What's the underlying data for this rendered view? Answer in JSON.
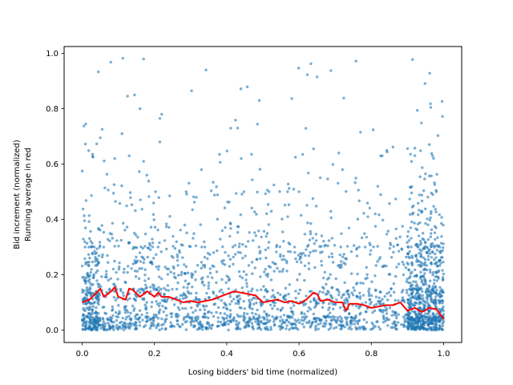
{
  "chart_data": {
    "type": "scatter",
    "title": "",
    "xlabel": "Losing bidders' bid time (normalized)",
    "ylabel_lines": [
      "Bid increment (normalized)",
      "Running average in red"
    ],
    "xlim": [
      -0.05,
      1.05
    ],
    "ylim": [
      -0.045,
      1.025
    ],
    "xticks": [
      0.0,
      0.2,
      0.4,
      0.6,
      0.8,
      1.0
    ],
    "xtick_labels": [
      "0.0",
      "0.2",
      "0.4",
      "0.6",
      "0.8",
      "1.0"
    ],
    "yticks": [
      0.0,
      0.2,
      0.4,
      0.6,
      0.8,
      1.0
    ],
    "ytick_labels": [
      "0.0",
      "0.2",
      "0.4",
      "0.6",
      "0.8",
      "1.0"
    ],
    "grid": false,
    "legend": null,
    "colors": {
      "points": "#1f77b4",
      "running_average": "#ff0000"
    },
    "notable_points": [
      {
        "x": 0.01,
        "y": 0.745
      },
      {
        "x": 0.05,
        "y": 0.695
      },
      {
        "x": 0.11,
        "y": 0.71
      },
      {
        "x": 0.145,
        "y": 0.85
      },
      {
        "x": 0.17,
        "y": 0.98
      },
      {
        "x": 0.22,
        "y": 0.78
      },
      {
        "x": 0.215,
        "y": 0.765
      },
      {
        "x": 0.43,
        "y": 0.73
      },
      {
        "x": 0.49,
        "y": 0.83
      },
      {
        "x": 0.65,
        "y": 0.915
      },
      {
        "x": 0.77,
        "y": 0.715
      },
      {
        "x": 0.16,
        "y": 0.8
      },
      {
        "x": 0.215,
        "y": 0.68
      },
      {
        "x": 0.38,
        "y": 0.635
      },
      {
        "x": 0.44,
        "y": 0.62
      },
      {
        "x": 0.61,
        "y": 0.635
      },
      {
        "x": 0.64,
        "y": 0.655
      },
      {
        "x": 0.71,
        "y": 0.64
      },
      {
        "x": 0.83,
        "y": 0.63
      },
      {
        "x": 0.95,
        "y": 0.565
      },
      {
        "x": 0.97,
        "y": 0.49
      },
      {
        "x": 0.98,
        "y": 0.5
      },
      {
        "x": 0.0,
        "y": 0.575
      },
      {
        "x": 0.03,
        "y": 0.625
      },
      {
        "x": 0.09,
        "y": 0.62
      },
      {
        "x": 0.13,
        "y": 0.63
      },
      {
        "x": 0.17,
        "y": 0.61
      },
      {
        "x": 0.33,
        "y": 0.58
      },
      {
        "x": 0.6,
        "y": 0.5
      },
      {
        "x": 0.72,
        "y": 0.58
      }
    ],
    "point_cloud_density": [
      {
        "y_range": [
          0.0,
          0.05
        ],
        "share": 0.33
      },
      {
        "y_range": [
          0.05,
          0.15
        ],
        "share": 0.3
      },
      {
        "y_range": [
          0.15,
          0.3
        ],
        "share": 0.21
      },
      {
        "y_range": [
          0.3,
          0.5
        ],
        "share": 0.12
      },
      {
        "y_range": [
          0.5,
          1.0
        ],
        "share": 0.04
      }
    ],
    "running_average": {
      "x": [
        0.0,
        0.02,
        0.04,
        0.05,
        0.06,
        0.08,
        0.09,
        0.1,
        0.12,
        0.13,
        0.14,
        0.16,
        0.18,
        0.2,
        0.21,
        0.22,
        0.24,
        0.26,
        0.28,
        0.3,
        0.32,
        0.34,
        0.36,
        0.38,
        0.4,
        0.42,
        0.44,
        0.46,
        0.48,
        0.5,
        0.52,
        0.54,
        0.56,
        0.58,
        0.6,
        0.62,
        0.64,
        0.65,
        0.66,
        0.68,
        0.7,
        0.72,
        0.73,
        0.74,
        0.76,
        0.78,
        0.8,
        0.82,
        0.84,
        0.86,
        0.88,
        0.9,
        0.92,
        0.94,
        0.96,
        0.98,
        1.0
      ],
      "y": [
        0.1,
        0.11,
        0.135,
        0.15,
        0.12,
        0.14,
        0.155,
        0.12,
        0.11,
        0.15,
        0.145,
        0.12,
        0.14,
        0.12,
        0.135,
        0.12,
        0.12,
        0.11,
        0.1,
        0.105,
        0.1,
        0.105,
        0.11,
        0.12,
        0.13,
        0.14,
        0.135,
        0.13,
        0.125,
        0.1,
        0.105,
        0.11,
        0.1,
        0.105,
        0.095,
        0.11,
        0.135,
        0.13,
        0.105,
        0.11,
        0.1,
        0.1,
        0.07,
        0.095,
        0.095,
        0.09,
        0.08,
        0.085,
        0.09,
        0.09,
        0.1,
        0.07,
        0.08,
        0.065,
        0.08,
        0.075,
        0.04
      ]
    }
  }
}
